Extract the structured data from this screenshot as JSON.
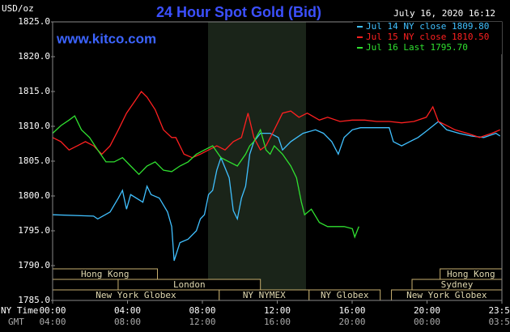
{
  "chart_data": {
    "type": "line",
    "title": "24 Hour Spot Gold (Bid)",
    "date": "July 16, 2020 16:12",
    "source": "www.kitco.com",
    "y_label": "USD/oz",
    "x_row_labels": [
      "NY Time",
      "GMT"
    ],
    "xlim": [
      0,
      24
    ],
    "ylim": [
      1785,
      1825
    ],
    "yticks": [
      {
        "value": 1785,
        "label": "1785.0"
      },
      {
        "value": 1790,
        "label": "1790.0"
      },
      {
        "value": 1795,
        "label": "1795.0"
      },
      {
        "value": 1800,
        "label": "1800.0"
      },
      {
        "value": 1805,
        "label": "1805.0"
      },
      {
        "value": 1810,
        "label": "1810.0"
      },
      {
        "value": 1815,
        "label": "1815.0"
      },
      {
        "value": 1820,
        "label": "1820.0"
      },
      {
        "value": 1825,
        "label": "1825.0"
      }
    ],
    "xticks": [
      {
        "value": 0,
        "label": "00:00"
      },
      {
        "value": 4,
        "label": "04:00"
      },
      {
        "value": 8,
        "label": "08:00"
      },
      {
        "value": 12,
        "label": "12:00"
      },
      {
        "value": 16,
        "label": "16:00"
      },
      {
        "value": 20,
        "label": "20:00"
      },
      {
        "value": 24,
        "label": "23:59"
      }
    ],
    "x2ticks": [
      {
        "value": 0,
        "label": "04:00"
      },
      {
        "value": 4,
        "label": "08:00"
      },
      {
        "value": 8,
        "label": "12:00"
      },
      {
        "value": 12,
        "label": "16:00"
      },
      {
        "value": 16,
        "label": "20:00"
      },
      {
        "value": 20,
        "label": "00:00"
      },
      {
        "value": 24,
        "label": "03:59"
      }
    ],
    "session_rows": [
      [
        {
          "label": "Hong Kong",
          "start": 0,
          "end": 5.6
        },
        {
          "label": "Hong Kong",
          "start": 20.7,
          "end": 24
        }
      ],
      [
        {
          "label": "London",
          "start": 3.5,
          "end": 11.1
        },
        {
          "label": "Sydney",
          "start": 19.2,
          "end": 24
        }
      ],
      [
        {
          "label": "New York Globex",
          "start": 0,
          "end": 8.9
        },
        {
          "label": "NY NYMEX",
          "start": 8.9,
          "end": 13.7
        },
        {
          "label": "NY Globex",
          "start": 13.7,
          "end": 17.5
        },
        {
          "label": "New York Globex",
          "start": 18.1,
          "end": 24
        }
      ]
    ],
    "series": [
      {
        "name": "Jul 14 NY close 1809.80",
        "color": "#40c0ff",
        "x": [
          0,
          2.19,
          2.41,
          3.07,
          3.51,
          3.73,
          3.95,
          4.17,
          4.82,
          5.04,
          5.26,
          5.7,
          6.14,
          6.36,
          6.49,
          6.8,
          7.24,
          7.68,
          7.89,
          8.11,
          8.33,
          8.55,
          8.77,
          8.99,
          9.43,
          9.65,
          9.87,
          10.09,
          10.31,
          10.53,
          10.75,
          11.1,
          11.62,
          12.06,
          12.28,
          12.72,
          13.38,
          14.04,
          14.47,
          14.91,
          15.26,
          15.57,
          16.01,
          16.45,
          17.32,
          17.98,
          18.2,
          18.64,
          19.08,
          19.52,
          19.96,
          20.61,
          21.05,
          21.71,
          22.37,
          23.03,
          23.68,
          23.9
        ],
        "values": [
          1797.3,
          1797.1,
          1796.7,
          1797.7,
          1799.7,
          1800.8,
          1798.1,
          1800.2,
          1799.1,
          1801.4,
          1800.2,
          1799.7,
          1797.7,
          1795.6,
          1790.7,
          1793.3,
          1793.8,
          1795.0,
          1796.7,
          1797.3,
          1800.2,
          1800.8,
          1803.7,
          1805.5,
          1802.6,
          1797.9,
          1796.7,
          1799.7,
          1801.4,
          1806.0,
          1807.8,
          1809.0,
          1809.0,
          1808.4,
          1806.6,
          1807.8,
          1809.0,
          1809.5,
          1809.0,
          1807.8,
          1806.0,
          1808.4,
          1809.5,
          1809.8,
          1809.8,
          1809.8,
          1807.8,
          1807.2,
          1807.8,
          1808.4,
          1809.3,
          1810.7,
          1809.5,
          1809.0,
          1808.6,
          1808.4,
          1809.0,
          1808.6
        ]
      },
      {
        "name": "Jul 15 NY close 1810.50",
        "color": "#ff2020",
        "x": [
          0,
          0.44,
          0.88,
          1.32,
          1.75,
          2.19,
          2.63,
          3.07,
          3.51,
          3.95,
          4.39,
          4.74,
          5.04,
          5.48,
          5.92,
          6.36,
          6.58,
          7.02,
          7.46,
          7.89,
          8.33,
          8.77,
          9.21,
          9.65,
          10.09,
          10.44,
          10.75,
          11.1,
          11.4,
          11.84,
          12.28,
          12.72,
          13.16,
          13.6,
          14.25,
          14.69,
          15.35,
          16.01,
          16.67,
          17.32,
          17.98,
          18.64,
          19.3,
          19.96,
          20.31,
          20.61,
          21.05,
          21.49,
          22.15,
          22.81,
          23.46,
          23.9
        ],
        "values": [
          1808.4,
          1807.8,
          1806.6,
          1807.2,
          1807.8,
          1807.2,
          1806.0,
          1807.2,
          1809.5,
          1811.9,
          1813.6,
          1815.0,
          1814.2,
          1812.4,
          1809.5,
          1808.4,
          1808.4,
          1806.0,
          1805.5,
          1806.0,
          1806.6,
          1807.2,
          1806.6,
          1807.8,
          1808.4,
          1811.9,
          1808.4,
          1806.6,
          1807.2,
          1809.5,
          1811.9,
          1812.2,
          1811.3,
          1811.9,
          1810.9,
          1811.3,
          1810.7,
          1810.9,
          1810.9,
          1810.7,
          1810.7,
          1810.5,
          1810.7,
          1811.3,
          1812.8,
          1810.7,
          1810.1,
          1809.5,
          1809.0,
          1808.4,
          1809.0,
          1809.5
        ]
      },
      {
        "name": "Jul 16 Last 1795.70",
        "color": "#30e030",
        "x": [
          0,
          0.44,
          0.88,
          1.18,
          1.54,
          1.97,
          2.41,
          2.85,
          3.29,
          3.73,
          4.17,
          4.61,
          5.04,
          5.48,
          5.92,
          6.36,
          6.8,
          7.24,
          7.68,
          8.11,
          8.55,
          8.99,
          9.43,
          9.87,
          10.31,
          10.53,
          10.75,
          11.1,
          11.4,
          11.62,
          11.84,
          12.28,
          12.72,
          13.03,
          13.29,
          13.46,
          13.82,
          14.25,
          14.69,
          15.13,
          15.57,
          16.01,
          16.14,
          16.36
        ],
        "values": [
          1809.0,
          1810.1,
          1810.9,
          1811.5,
          1809.5,
          1808.4,
          1806.6,
          1804.9,
          1804.9,
          1805.5,
          1804.3,
          1803.1,
          1804.3,
          1804.9,
          1803.7,
          1803.5,
          1804.3,
          1804.9,
          1806.0,
          1806.6,
          1807.2,
          1805.5,
          1804.9,
          1804.3,
          1806.0,
          1807.2,
          1807.8,
          1809.5,
          1806.6,
          1806.0,
          1807.2,
          1806.0,
          1804.3,
          1802.6,
          1799.1,
          1797.3,
          1798.1,
          1796.2,
          1795.6,
          1795.6,
          1795.6,
          1795.3,
          1794.1,
          1795.6
        ]
      }
    ]
  }
}
